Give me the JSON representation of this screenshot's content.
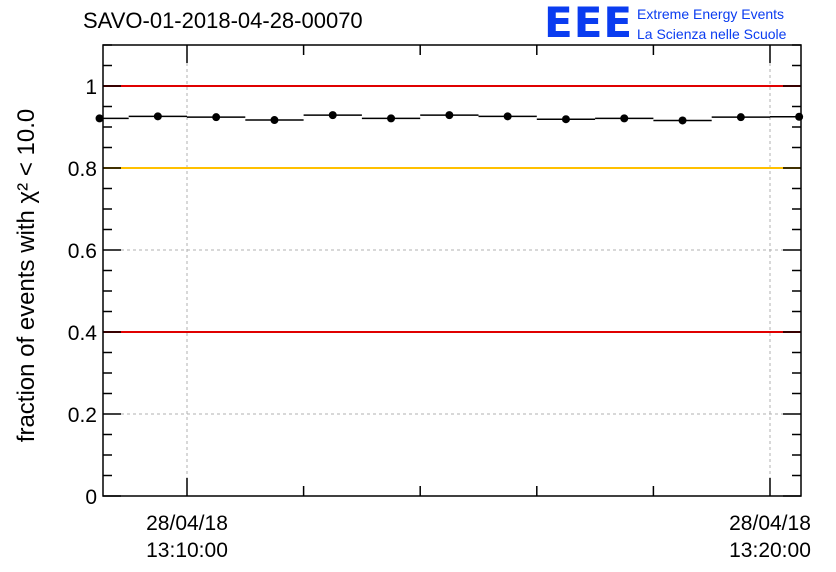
{
  "header": {
    "title": "SAVO-01-2018-04-28-00070"
  },
  "logo": {
    "mark": "EEE",
    "line1": "Extreme Energy Events",
    "line2": "La Scienza nelle Scuole",
    "color": "#0a3cf0"
  },
  "chart_data": {
    "type": "scatter",
    "title": "SAVO-01-2018-04-28-00070",
    "ylabel": "fraction of events with χ² < 10.0",
    "ylim": [
      0,
      1.1
    ],
    "yticks": [
      "0",
      "0.2",
      "0.4",
      "0.6",
      "0.8",
      "1"
    ],
    "xticks": [
      {
        "date": "28/04/18",
        "time": "13:10:00"
      },
      {
        "date": "28/04/18",
        "time": "13:20:00"
      }
    ],
    "grid": true,
    "reference_lines": [
      {
        "y": 1.0,
        "color": "#e00000"
      },
      {
        "y": 0.8,
        "color": "#ffc000"
      },
      {
        "y": 0.4,
        "color": "#e00000"
      }
    ],
    "series": [
      {
        "x": [
          "13:08:30",
          "13:09:30",
          "13:10:30",
          "13:11:30",
          "13:12:30",
          "13:13:30",
          "13:14:30",
          "13:15:30",
          "13:16:30",
          "13:17:30",
          "13:18:30",
          "13:19:30",
          "13:20:30"
        ],
        "values": [
          0.921,
          0.926,
          0.924,
          0.917,
          0.929,
          0.921,
          0.929,
          0.926,
          0.919,
          0.921,
          0.916,
          0.924,
          0.925
        ]
      }
    ]
  }
}
